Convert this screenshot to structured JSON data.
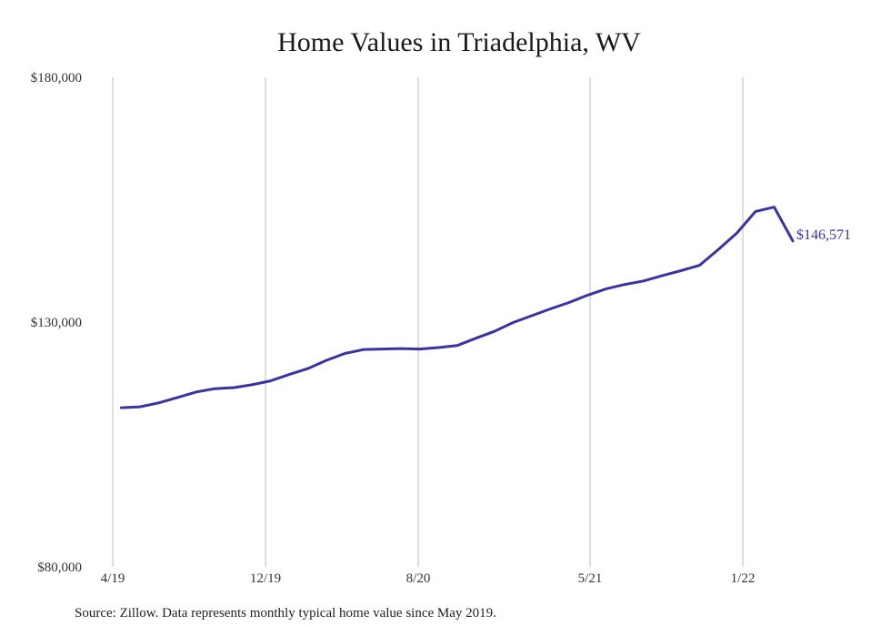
{
  "chart_data": {
    "type": "line",
    "title": "Home Values in Triadelphia, WV",
    "xlabel": "",
    "ylabel": "",
    "ylim": [
      80000,
      180000
    ],
    "y_ticks": [
      "$180,000",
      "$130,000",
      "$80,000"
    ],
    "y_tick_values": [
      180000,
      130000,
      80000
    ],
    "x_ticks": [
      "4/19",
      "12/19",
      "8/20",
      "5/21",
      "1/22"
    ],
    "x_tick_months": [
      0,
      8,
      16,
      25,
      33
    ],
    "grid": "vertical",
    "line_color": "#3a34a0",
    "end_label": "$146,571",
    "x": [
      "5/19",
      "6/19",
      "7/19",
      "8/19",
      "9/19",
      "10/19",
      "11/19",
      "12/19",
      "1/20",
      "2/20",
      "3/20",
      "4/20",
      "5/20",
      "6/20",
      "7/20",
      "8/20",
      "9/20",
      "10/20",
      "11/20",
      "12/20",
      "1/21",
      "2/21",
      "3/21",
      "4/21",
      "5/21",
      "6/21",
      "7/21",
      "8/21",
      "9/21",
      "10/21",
      "11/21",
      "12/21",
      "1/22",
      "2/22",
      "3/22",
      "4/22",
      "5/22"
    ],
    "values": [
      112500,
      112700,
      113500,
      114600,
      115700,
      116400,
      116600,
      117200,
      118000,
      119300,
      120500,
      122200,
      123600,
      124400,
      124500,
      124600,
      124500,
      124800,
      125200,
      126700,
      128100,
      129900,
      131300,
      132700,
      134000,
      135500,
      136800,
      137700,
      138400,
      139500,
      140500,
      141600,
      144800,
      148200,
      152600,
      153500,
      146571
    ]
  },
  "source_note": "Source: Zillow. Data represents monthly typical home value since May 2019."
}
